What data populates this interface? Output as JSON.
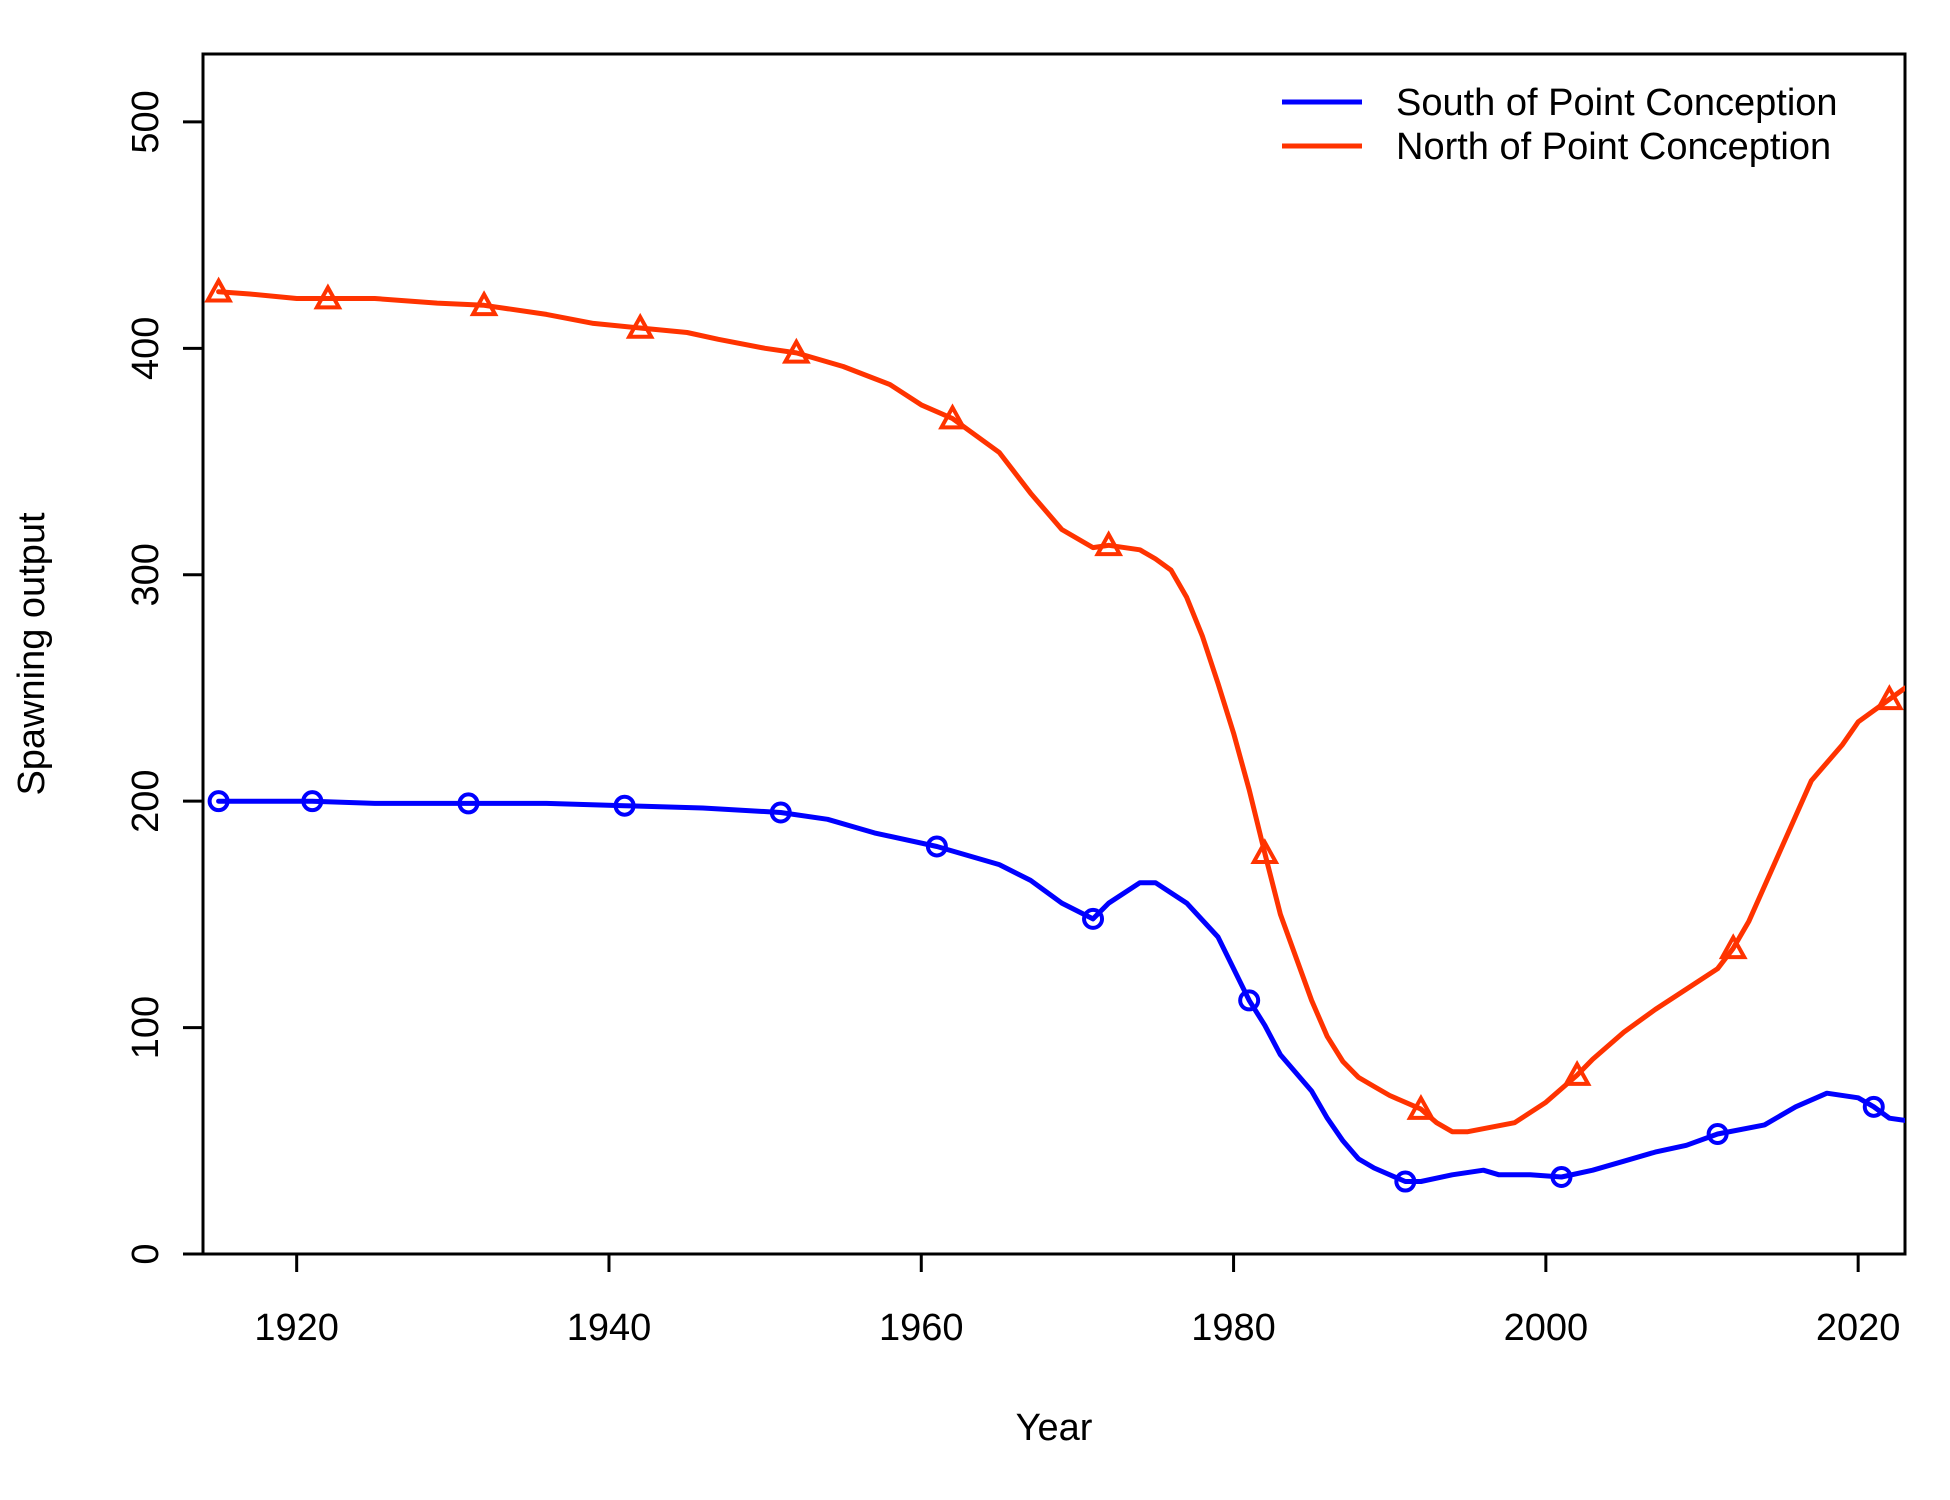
{
  "chart_data": {
    "type": "line",
    "title": "",
    "xlabel": "Year",
    "ylabel": "Spawning output",
    "xlim": [
      1914,
      2023
    ],
    "ylim": [
      0,
      530
    ],
    "xticks": [
      1920,
      1940,
      1960,
      1980,
      2000,
      2020
    ],
    "yticks": [
      0,
      100,
      200,
      300,
      400,
      500
    ],
    "legend_position": "top-right",
    "grid": false,
    "series": [
      {
        "name": "South of Point Conception",
        "color": "#0000ff",
        "marker": "circle",
        "marker_years": [
          1915,
          1921,
          1931,
          1941,
          1951,
          1961,
          1971,
          1981,
          1991,
          2001,
          2011,
          2021
        ],
        "x": [
          1915,
          1918,
          1921,
          1925,
          1931,
          1936,
          1941,
          1946,
          1951,
          1954,
          1957,
          1961,
          1965,
          1967,
          1969,
          1971,
          1972,
          1974,
          1975,
          1977,
          1979,
          1981,
          1982,
          1983,
          1985,
          1986,
          1987,
          1988,
          1989,
          1991,
          1992,
          1994,
          1996,
          1997,
          1999,
          2001,
          2003,
          2005,
          2007,
          2009,
          2011,
          2014,
          2016,
          2018,
          2020,
          2021,
          2022,
          2023
        ],
        "y": [
          200,
          200,
          200,
          199,
          199,
          199,
          198,
          197,
          195,
          192,
          186,
          180,
          172,
          165,
          155,
          148,
          155,
          164,
          164,
          155,
          140,
          112,
          101,
          88,
          72,
          60,
          50,
          42,
          38,
          32,
          32,
          35,
          37,
          35,
          35,
          34,
          37,
          41,
          45,
          48,
          53,
          57,
          65,
          71,
          69,
          65,
          60,
          59
        ]
      },
      {
        "name": "North of Point Conception",
        "color": "#ff3300",
        "marker": "triangle",
        "marker_years": [
          1915,
          1922,
          1932,
          1942,
          1952,
          1962,
          1972,
          1982,
          1992,
          2002,
          2012,
          2022
        ],
        "x": [
          1915,
          1917,
          1920,
          1922,
          1925,
          1929,
          1932,
          1936,
          1939,
          1942,
          1945,
          1947,
          1950,
          1952,
          1955,
          1958,
          1960,
          1962,
          1965,
          1967,
          1969,
          1971,
          1972,
          1974,
          1975,
          1976,
          1977,
          1978,
          1979,
          1980,
          1981,
          1982,
          1983,
          1985,
          1986,
          1987,
          1988,
          1989,
          1990,
          1992,
          1993,
          1994,
          1995,
          1998,
          2000,
          2002,
          2003,
          2005,
          2007,
          2009,
          2011,
          2012,
          2013,
          2015,
          2017,
          2019,
          2020,
          2022,
          2023
        ],
        "y": [
          425,
          424,
          422,
          422,
          422,
          420,
          419,
          415,
          411,
          409,
          407,
          404,
          400,
          398,
          392,
          384,
          375,
          369,
          354,
          336,
          320,
          312,
          313,
          311,
          307,
          302,
          290,
          273,
          252,
          230,
          205,
          177,
          150,
          112,
          96,
          85,
          78,
          74,
          70,
          64,
          58,
          54,
          54,
          58,
          67,
          79,
          86,
          98,
          108,
          117,
          126,
          135,
          147,
          178,
          209,
          225,
          235,
          245,
          250
        ]
      }
    ]
  }
}
